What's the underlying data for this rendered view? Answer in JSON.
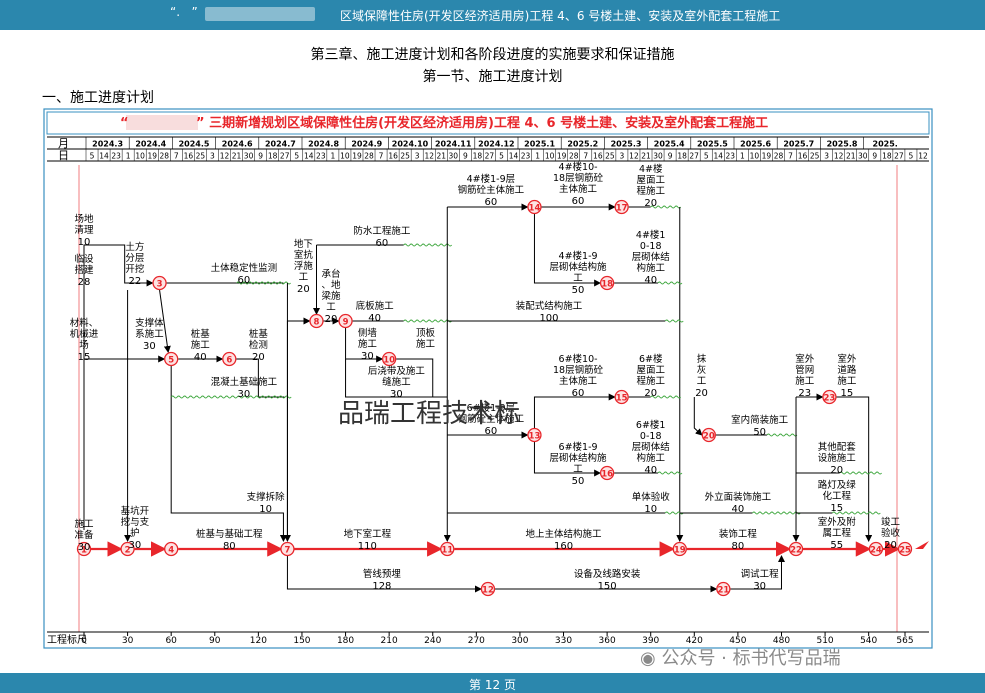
{
  "header": {
    "dots": "“.       ”",
    "title": "区域保障性住房(开发区经济适用房)工程 4、6 号楼土建、安装及室外配套工程施工"
  },
  "chapter_title": "第三章、施工进度计划和各阶段进度的实施要求和保证措施",
  "section_title": "第一节、施工进度计划",
  "subsection_title": "一、施工进度计划",
  "diagram": {
    "banner_left_quote": "“",
    "banner_right": "” 三期新增规划区域保障性住房(开发区经济适用房)工程 4、6 号楼土建、安装及室外配套工程施工",
    "row_month_label": "月",
    "row_day_label": "日",
    "months": [
      "2024.3",
      "2024.4",
      "2024.5",
      "2024.6",
      "2024.7",
      "2024.8",
      "2024.9",
      "2024.10",
      "2024.11",
      "2024.12",
      "2025.1",
      "2025.2",
      "2025.3",
      "2025.4",
      "2025.5",
      "2025.6",
      "2025.7",
      "2025.8",
      "2025."
    ],
    "days": [
      "5",
      "14",
      "23",
      "1",
      "10",
      "19",
      "28",
      "7",
      "16",
      "25",
      "3",
      "12",
      "21",
      "30",
      "9",
      "18",
      "27",
      "5",
      "14",
      "23",
      "1",
      "10",
      "19",
      "28",
      "7",
      "16",
      "25",
      "3",
      "12",
      "21",
      "30",
      "9",
      "18",
      "27",
      "5",
      "14",
      "23",
      "1",
      "10",
      "19",
      "28",
      "7",
      "16",
      "25",
      "3",
      "12",
      "21",
      "30",
      "9",
      "18",
      "27",
      "5",
      "14",
      "23",
      "1",
      "10",
      "19",
      "28",
      "7",
      "16",
      "25",
      "3",
      "12",
      "21",
      "30",
      "9",
      "18",
      "27",
      "5",
      "12"
    ],
    "scale_label": "工程标尺",
    "scale": [
      "0",
      "30",
      "60",
      "90",
      "120",
      "150",
      "180",
      "210",
      "240",
      "270",
      "300",
      "330",
      "360",
      "390",
      "420",
      "450",
      "480",
      "510",
      "540",
      "565"
    ],
    "activities": [
      {
        "name": "场地清理",
        "dur": "10"
      },
      {
        "name": "临设搭建",
        "dur": "28"
      },
      {
        "name": "材料、机械进场",
        "dur": "15"
      },
      {
        "name": "施工准备",
        "dur": "30"
      },
      {
        "name": "土方分层开挖",
        "dur": "22"
      },
      {
        "name": "支撑体系施工",
        "dur": "30"
      },
      {
        "name": "基坑开挖与支护",
        "dur": "30"
      },
      {
        "name": "土体稳定性监测",
        "dur": "60"
      },
      {
        "name": "桩基施工",
        "dur": "40"
      },
      {
        "name": "桩基检测",
        "dur": "20"
      },
      {
        "name": "混凝土基础施工",
        "dur": "30"
      },
      {
        "name": "支撑拆除",
        "dur": "10"
      },
      {
        "name": "桩基与基础工程",
        "dur": "80"
      },
      {
        "name": "地下室抗浮施工",
        "dur": "20"
      },
      {
        "name": "承台、地梁施工",
        "dur": "20"
      },
      {
        "name": "防水工程施工",
        "dur": "60"
      },
      {
        "name": "底板施工",
        "dur": "40"
      },
      {
        "name": "侧墙施工",
        "dur": "30"
      },
      {
        "name": "顶板施工",
        "dur": ""
      },
      {
        "name": "后浇带及施工缝施工",
        "dur": "30"
      },
      {
        "name": "地下室工程",
        "dur": "110"
      },
      {
        "name": "管线预埋",
        "dur": "128"
      },
      {
        "name": "4#楼1-9层钢筋砼主体施工",
        "dur": "60"
      },
      {
        "name": "4#楼10-18层钢筋砼主体施工",
        "dur": "60"
      },
      {
        "name": "4#楼屋面工程施工",
        "dur": "20"
      },
      {
        "name": "4#楼1-9层砌体结构施工",
        "dur": "50"
      },
      {
        "name": "4#楼10-18层砌体结构施工",
        "dur": "40"
      },
      {
        "name": "装配式结构施工",
        "dur": "100"
      },
      {
        "name": "6#楼10-18层钢筋砼主体施工",
        "dur": "60"
      },
      {
        "name": "6#楼屋面工程施工",
        "dur": "20"
      },
      {
        "name": "6#楼1-9层钢筋砼主体施工",
        "dur": "60"
      },
      {
        "name": "6#楼1-9层砌体结构施工",
        "dur": "50"
      },
      {
        "name": "6#楼10-18层砌体结构施工",
        "dur": "40"
      },
      {
        "name": "单体验收",
        "dur": "10"
      },
      {
        "name": "地上主体结构施工",
        "dur": "160"
      },
      {
        "name": "设备及线路安装",
        "dur": "150"
      },
      {
        "name": "抹灰工",
        "dur": "20"
      },
      {
        "name": "室内简装施工",
        "dur": "50"
      },
      {
        "name": "外立面装饰施工",
        "dur": "40"
      },
      {
        "name": "装饰工程",
        "dur": "80"
      },
      {
        "name": "调试工程",
        "dur": "30"
      },
      {
        "name": "室外管网施工",
        "dur": "23"
      },
      {
        "name": "室外道路施工",
        "dur": "15"
      },
      {
        "name": "其他配套设施施工",
        "dur": "20"
      },
      {
        "name": "路灯及绿化工程",
        "dur": "15"
      },
      {
        "name": "室外及附属工程",
        "dur": "55"
      },
      {
        "name": "竣工验收",
        "dur": "20"
      }
    ]
  },
  "watermark": "品瑞工程技术标",
  "wechat": "公众号 · 标书代写品瑞",
  "footer": {
    "page": "第 12 页"
  },
  "colors": {
    "bar": "#2b87ad",
    "critical": "#e8262b",
    "banner_text": "#e8262b",
    "grid_text": "#1a1a8c",
    "node_fill": "#fde3e3"
  }
}
